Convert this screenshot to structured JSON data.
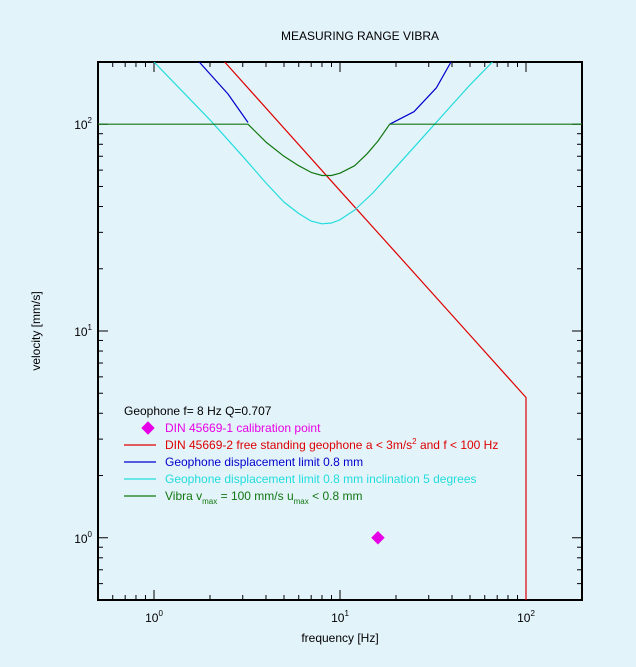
{
  "chart_data": {
    "type": "line",
    "title": "MEASURING  RANGE VIBRA",
    "xlabel": "frequency [Hz]",
    "ylabel": "velocity [mm/s]",
    "x_scale": "log",
    "y_scale": "log",
    "xlim": [
      0.5,
      200
    ],
    "ylim": [
      0.5,
      200
    ],
    "grid": false,
    "x_ticks": [
      {
        "base": "10",
        "exp": "0",
        "value": 1
      },
      {
        "base": "10",
        "exp": "1",
        "value": 10
      },
      {
        "base": "10",
        "exp": "2",
        "value": 100
      }
    ],
    "y_ticks": [
      {
        "base": "10",
        "exp": "0",
        "value": 1
      },
      {
        "base": "10",
        "exp": "1",
        "value": 10
      },
      {
        "base": "10",
        "exp": "2",
        "value": 100
      }
    ],
    "legend_header": "Geophone f= 8 Hz Q=0.707",
    "legend_placement": "lower-left",
    "series": [
      {
        "name": "DIN 45669-1 calibration point",
        "label_parts": [
          {
            "t": "DIN 45669-1 calibration point"
          }
        ],
        "color": "#e600e6",
        "style": "marker-diamond",
        "points": [
          [
            16,
            1.0
          ]
        ]
      },
      {
        "name": "DIN 45669-2 free standing geophone a < 3m/s2 and f < 100 Hz",
        "label_parts": [
          {
            "t": "DIN 45669-2 free standing geophone a < 3m/s"
          },
          {
            "t": "2",
            "sup": true
          },
          {
            "t": " and f < 100 Hz"
          }
        ],
        "color": "#dd0000",
        "style": "line",
        "points": [
          [
            2.4,
            200
          ],
          [
            10,
            47.7
          ],
          [
            20,
            23.9
          ],
          [
            50,
            9.55
          ],
          [
            100,
            4.77
          ],
          [
            100,
            0.5
          ]
        ]
      },
      {
        "name": "Geophone displacement limit 0.8 mm",
        "label_parts": [
          {
            "t": "Geophone displacement limit 0.8 mm"
          }
        ],
        "color": "#0000cc",
        "style": "line",
        "segments": [
          [
            [
              1.75,
              200
            ],
            [
              2.5,
              140
            ],
            [
              3.2,
              102
            ]
          ],
          [
            [
              18.5,
              100
            ],
            [
              25,
              115
            ],
            [
              33,
              150
            ],
            [
              39.5,
              200
            ]
          ]
        ]
      },
      {
        "name": "Geophone displacement limit 0.8 mm inclination 5 degrees",
        "label_parts": [
          {
            "t": "Geophone displacement limit 0.8 mm inclination 5 degrees"
          }
        ],
        "color": "#22dddd",
        "style": "line",
        "points": [
          [
            1.0,
            200
          ],
          [
            2,
            105
          ],
          [
            3,
            70
          ],
          [
            4,
            52
          ],
          [
            5,
            42
          ],
          [
            6,
            37
          ],
          [
            7,
            34
          ],
          [
            8,
            33
          ],
          [
            9,
            33.3
          ],
          [
            10,
            34.5
          ],
          [
            12,
            38.5
          ],
          [
            15,
            46.5
          ],
          [
            20,
            62
          ],
          [
            30,
            93
          ],
          [
            40,
            124
          ],
          [
            50,
            155
          ],
          [
            66,
            200
          ]
        ]
      },
      {
        "name": "Vibra vmax = 100 mm/s umax < 0.8 mm",
        "label_parts": [
          {
            "t": "Vibra v"
          },
          {
            "t": "max",
            "sub": true
          },
          {
            "t": " = 100 mm/s u"
          },
          {
            "t": "max",
            "sub": true
          },
          {
            "t": " < 0.8 mm"
          }
        ],
        "color": "#117711",
        "style": "line",
        "points": [
          [
            0.5,
            100
          ],
          [
            3.2,
            100
          ],
          [
            4,
            82
          ],
          [
            5,
            70
          ],
          [
            6,
            63
          ],
          [
            7,
            58.5
          ],
          [
            8,
            56.5
          ],
          [
            9,
            56.5
          ],
          [
            10,
            58
          ],
          [
            12,
            63
          ],
          [
            14,
            72
          ],
          [
            16,
            83
          ],
          [
            18.5,
            100
          ],
          [
            200,
            100
          ]
        ]
      }
    ]
  }
}
